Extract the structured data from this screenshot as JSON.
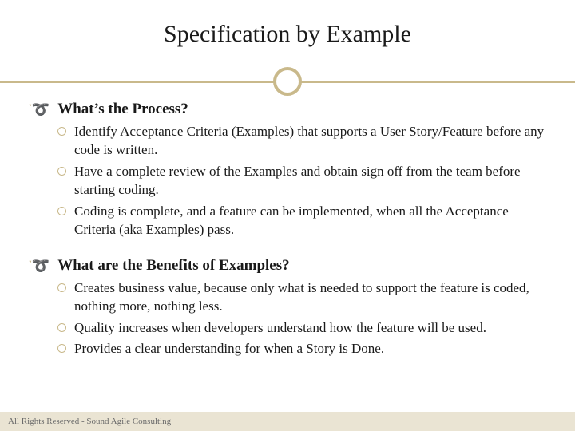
{
  "colors": {
    "accent": "#c9b98b",
    "text": "#1a1a1a",
    "footer_bg": "#eae4d3",
    "footer_text": "#6b6b6b",
    "bg": "#ffffff"
  },
  "title": "Specification by Example",
  "sections": [
    {
      "heading": "What’s the Process?",
      "items": [
        "Identify Acceptance Criteria (Examples) that supports a User Story/Feature before any code is written.",
        "Have a complete review of the Examples and obtain sign off from the team before starting coding.",
        "Coding is complete, and a feature can be implemented, when all the Acceptance Criteria (aka Examples) pass."
      ]
    },
    {
      "heading": "What are the Benefits of Examples?",
      "items": [
        "Creates business value, because only what is needed to support the feature is coded, nothing more, nothing less.",
        "Quality increases when developers understand how the feature will be used.",
        "Provides a clear understanding for when a Story is Done."
      ]
    }
  ],
  "footer": "All Rights Reserved - Sound Agile Consulting",
  "swirl_glyph": "་➰"
}
